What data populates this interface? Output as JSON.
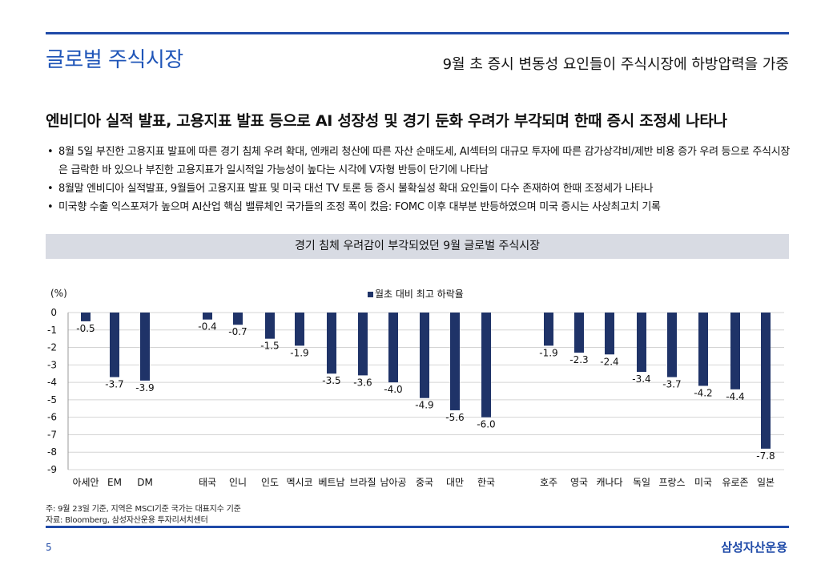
{
  "header": {
    "section_title": "글로벌 주식시장",
    "subtitle": "9월 초 증시 변동성 요인들이 주식시장에 하방압력을 가중"
  },
  "headline": "엔비디아 실적 발표, 고용지표 발표 등으로 AI 성장성 및 경기 둔화 우려가 부각되며 한때 증시 조정세 나타나",
  "bullets": [
    "8월 5일 부진한 고용지표 발표에 따른 경기 침체 우려 확대, 엔캐리 청산에 따른 자산 순매도세, AI섹터의 대규모 투자에 따른 감가상각비/제반 비용 증가 우려 등으로 주식시장은 급락한 바 있으나 부진한 고용지표가 일시적일 가능성이 높다는 시각에 V자형 반등이 단기에 나타남",
    "8월말 엔비디아 실적발표, 9월들어 고용지표 발표 및 미국 대선 TV 토론 등 증시 불확실성 확대 요인들이 다수 존재하여 한때 조정세가 나타나",
    "미국향 수출 익스포져가 높으며 AI산업 핵심 밸류체인 국가들의 조정 폭이 컸음: FOMC 이후 대부분 반등하였으며 미국 증시는 사상최고치 기록"
  ],
  "chart_banner": "경기 침체 우려감이 부각되었던 9월 글로벌 주식시장",
  "chart_data": {
    "type": "bar",
    "title": "경기 침체 우려감이 부각되었던 9월 글로벌 주식시장",
    "ylabel": "(%)",
    "legend": "월초 대비 최고 하락율",
    "legend_position": "top-center",
    "ylim": [
      -9,
      0
    ],
    "yticks": [
      0,
      -1,
      -2,
      -3,
      -4,
      -5,
      -6,
      -7,
      -8,
      -9
    ],
    "grid": true,
    "groups": [
      {
        "categories": [
          "아세안",
          "EM",
          "DM"
        ],
        "values": [
          -0.5,
          -3.7,
          -3.9
        ]
      },
      {
        "categories": [
          "태국",
          "인니",
          "인도",
          "멕시코",
          "베트남",
          "브라질",
          "남아공",
          "중국",
          "대만",
          "한국"
        ],
        "values": [
          -0.4,
          -0.7,
          -1.5,
          -1.9,
          -3.5,
          -3.6,
          -4.0,
          -4.9,
          -5.6,
          -6.0
        ]
      },
      {
        "categories": [
          "호주",
          "영국",
          "캐나다",
          "독일",
          "프랑스",
          "미국",
          "유로존",
          "일본"
        ],
        "values": [
          -1.9,
          -2.3,
          -2.4,
          -3.4,
          -3.7,
          -4.2,
          -4.4,
          -7.8
        ]
      }
    ],
    "bar_color": "#1f3368"
  },
  "footnotes": [
    "주: 9월 23일 기준, 지역은 MSCI기준 국가는 대표지수 기준",
    "자료: Bloomberg, 삼성자산운용 투자리서치센터"
  ],
  "footer": {
    "page_number": "5",
    "brand": "삼성자산운용"
  }
}
